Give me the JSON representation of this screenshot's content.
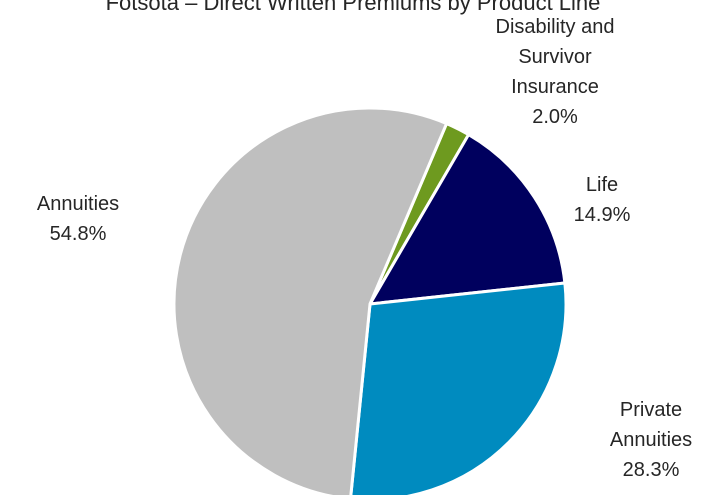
{
  "chart_data": {
    "type": "pie",
    "title": "Fotsota – Direct Written Premiums by Product Line",
    "categories": [
      "Disability and Survivor Insurance",
      "Life",
      "Private Annuities",
      "Annuities"
    ],
    "values": [
      2.0,
      14.9,
      28.3,
      54.8
    ],
    "value_labels": [
      "2.0%",
      "14.9%",
      "28.3%",
      "54.8%"
    ],
    "label_lines": [
      [
        "Disability and",
        "Survivor",
        "Insurance",
        "2.0%"
      ],
      [
        "Life",
        "14.9%"
      ],
      [
        "Private",
        "Annuities",
        "28.3%"
      ],
      [
        "Annuities",
        "54.8%"
      ]
    ],
    "colors": [
      "#6e9a1f",
      "#00005e",
      "#008bbf",
      "#bfbfbf"
    ],
    "start_angle_deg": 23,
    "direction": "clockwise"
  }
}
